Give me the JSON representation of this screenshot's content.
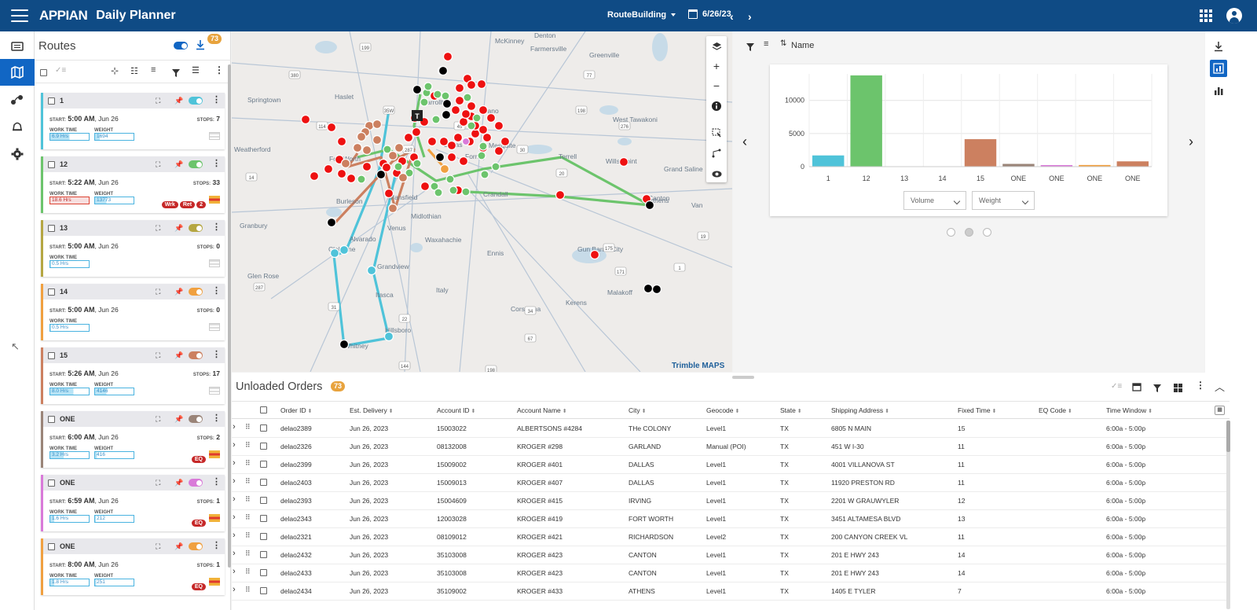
{
  "header": {
    "logo": "APPIAN",
    "title": "Daily Planner",
    "route_mode": "RouteBuilding",
    "date": "6/26/23"
  },
  "colors": {
    "header": "#0f4b85",
    "accent": "#1166c4",
    "badge": "#e8a33d"
  },
  "routes_panel": {
    "title": "Routes",
    "count": "73",
    "cards": [
      {
        "name": "1",
        "color": "#4fc3d9",
        "start_time": "5:00 AM",
        "start_date": ", Jun 26",
        "stops": "7",
        "work_time": "6.9 Hrs",
        "weight": "1694",
        "work_pct": 0.5,
        "weight_pct": 0.12,
        "alert": false
      },
      {
        "name": "12",
        "color": "#6cc46c",
        "start_time": "5:22 AM",
        "start_date": ", Jun 26",
        "stops": "33",
        "work_time": "18.6 Hrs",
        "weight": "13773",
        "work_pct": 1,
        "weight_pct": 0.3,
        "alert": true,
        "pills": [
          "Wrk",
          "Ret",
          "2"
        ]
      },
      {
        "name": "13",
        "color": "#b5a642",
        "start_time": "5:00 AM",
        "start_date": ", Jun 26",
        "stops": "0",
        "work_time": "0.5 Hrs",
        "weight": null,
        "work_pct": 0.02,
        "weight_pct": 0,
        "alert": false
      },
      {
        "name": "14",
        "color": "#f0a040",
        "start_time": "5:00 AM",
        "start_date": ", Jun 26",
        "stops": "0",
        "work_time": "0.5 Hrs",
        "weight": null,
        "work_pct": 0.02,
        "weight_pct": 0,
        "alert": false
      },
      {
        "name": "15",
        "color": "#cc8060",
        "start_time": "5:26 AM",
        "start_date": ", Jun 26",
        "stops": "17",
        "work_time": "8.0 Hrs",
        "weight": "4146",
        "work_pct": 0.6,
        "weight_pct": 0.3,
        "alert": false
      },
      {
        "name": "ONE",
        "color": "#9a8478",
        "start_time": "6:00 AM",
        "start_date": ", Jun 26",
        "stops": "2",
        "work_time": "3.2 Hrs",
        "weight": "416",
        "work_pct": 0.35,
        "weight_pct": 0.05,
        "alert": true,
        "pills": [
          "EQ"
        ]
      },
      {
        "name": "ONE",
        "color": "#d97ad9",
        "start_time": "6:59 AM",
        "start_date": ", Jun 26",
        "stops": "1",
        "work_time": "1.6 Hrs",
        "weight": "212",
        "work_pct": 0.1,
        "weight_pct": 0.02,
        "alert": true,
        "pills": [
          "EQ"
        ]
      },
      {
        "name": "ONE",
        "color": "#f0a040",
        "start_time": "8:00 AM",
        "start_date": ", Jun 26",
        "stops": "1",
        "work_time": "1.8 Hrs",
        "weight": "251",
        "work_pct": 0.1,
        "weight_pct": 0.03,
        "alert": true,
        "pills": [
          "EQ"
        ]
      }
    ],
    "labels": {
      "start": "START:",
      "stops": "STOPS:",
      "work_time": "WORK TIME",
      "weight": "WEIGHT"
    }
  },
  "map": {
    "attribution": "Trimble MAPS",
    "places": [
      "Denton",
      "McKinney",
      "Farmersville",
      "Greenville",
      "Springtown",
      "Haslet",
      "Carrollton",
      "Plano",
      "Weatherford",
      "Fort Worth",
      "Dallas",
      "Mesquite",
      "Terrell",
      "Wills Point",
      "Grand Saline",
      "West Tawakoni",
      "Burleson",
      "Mansfield",
      "Midlothian",
      "Granbury",
      "Venus",
      "Waxahachie",
      "Ennis",
      "Glen Rose",
      "Cleburne",
      "Alvarado",
      "Grandview",
      "Itasca",
      "Italy",
      "Corsicana",
      "Kerens",
      "Malakoff",
      "Gun Barrel City",
      "Athens",
      "Canton",
      "Hillsboro",
      "Whitney",
      "Van",
      "Forney",
      "Crandall"
    ],
    "roads": [
      "380",
      "114",
      "199",
      "287",
      "35W",
      "30",
      "20",
      "45",
      "175",
      "276",
      "19",
      "34",
      "287",
      "31",
      "144",
      "14",
      "171",
      "67",
      "77",
      "22",
      "198",
      "1",
      "198"
    ]
  },
  "chart": {
    "filter_label": "Name",
    "selects": [
      "Volume",
      "Weight"
    ],
    "chart_data": {
      "type": "bar",
      "categories": [
        "1",
        "12",
        "13",
        "14",
        "15",
        "ONE",
        "ONE",
        "ONE",
        "ONE"
      ],
      "values": [
        1694,
        13773,
        0,
        0,
        4146,
        416,
        212,
        251,
        800
      ],
      "colors": [
        "#4fc3d9",
        "#6cc46c",
        "#b5a642",
        "#f0a040",
        "#cc8060",
        "#9a8478",
        "#d97ad9",
        "#f0a040",
        "#cc8060"
      ],
      "yticks": [
        "0",
        "5000",
        "10000"
      ],
      "ylim": [
        0,
        14000
      ]
    }
  },
  "orders": {
    "title": "Unloaded Orders",
    "count": "73",
    "columns": [
      "Order ID",
      "Est. Delivery",
      "Account ID",
      "Account Name",
      "City",
      "Geocode",
      "State",
      "Shipping Address",
      "Fixed Time",
      "EQ Code",
      "Time Window"
    ],
    "rows": [
      [
        "delao2389",
        "Jun 26, 2023",
        "15003022",
        "ALBERTSONS #4284",
        "THe COLONY",
        "Level1",
        "TX",
        "6805 N MAIN",
        "15",
        "",
        "6:00a - 5:00p"
      ],
      [
        "delao2326",
        "Jun 26, 2023",
        "08132008",
        "KROGER #298",
        "GARLAND",
        "Manual (POI)",
        "TX",
        "451 W I-30",
        "11",
        "",
        "6:00a - 5:00p"
      ],
      [
        "delao2399",
        "Jun 26, 2023",
        "15009002",
        "KROGER #401",
        "DALLAS",
        "Level1",
        "TX",
        "4001 VILLANOVA ST",
        "11",
        "",
        "6:00a - 5:00p"
      ],
      [
        "delao2403",
        "Jun 26, 2023",
        "15009013",
        "KROGER #407",
        "DALLAS",
        "Level1",
        "TX",
        "11920 PRESTON RD",
        "11",
        "",
        "6:00a - 5:00p"
      ],
      [
        "delao2393",
        "Jun 26, 2023",
        "15004609",
        "KROGER #415",
        "IRVING",
        "Level1",
        "TX",
        "2201 W GRAUWYLER",
        "12",
        "",
        "6:00a - 5:00p"
      ],
      [
        "delao2343",
        "Jun 26, 2023",
        "12003028",
        "KROGER #419",
        "FORT WORTH",
        "Level1",
        "TX",
        "3451 ALTAMESA BLVD",
        "13",
        "",
        "6:00a - 5:00p"
      ],
      [
        "delao2321",
        "Jun 26, 2023",
        "08109012",
        "KROGER #421",
        "RICHARDSON",
        "Level2",
        "TX",
        "200 CANYON CREEK VL",
        "11",
        "",
        "6:00a - 5:00p"
      ],
      [
        "delao2432",
        "Jun 26, 2023",
        "35103008",
        "KROGER #423",
        "CANTON",
        "Level1",
        "TX",
        "201 E HWY 243",
        "14",
        "",
        "6:00a - 5:00p"
      ],
      [
        "delao2433",
        "Jun 26, 2023",
        "35103008",
        "KROGER #423",
        "CANTON",
        "Level1",
        "TX",
        "201 E HWY 243",
        "14",
        "",
        "6:00a - 5:00p"
      ],
      [
        "delao2434",
        "Jun 26, 2023",
        "35109002",
        "KROGER #433",
        "ATHENS",
        "Level1",
        "TX",
        "1405 E TYLER",
        "7",
        "",
        "6:00a - 5:00p"
      ]
    ]
  }
}
